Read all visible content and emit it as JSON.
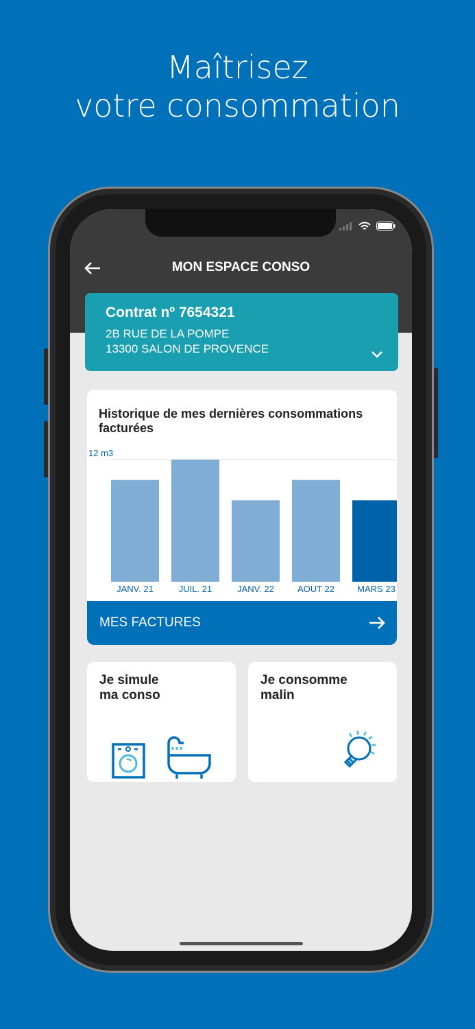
{
  "headline": {
    "line1": "Maîtrisez",
    "line2": "votre consommation"
  },
  "header": {
    "title": "MON ESPACE CONSO",
    "back_icon": "arrow-left-icon"
  },
  "contract": {
    "number": "Contrat nº 7654321",
    "address_line1": "2B RUE DE LA POMPE",
    "address_line2": "13300 SALON DE PROVENCE",
    "chevron": "chevron-down-icon"
  },
  "chart_card": {
    "title": "Historique de mes dernières consommations facturées"
  },
  "chart_data": {
    "type": "bar",
    "title": "Historique de mes dernières consommations facturées",
    "ylabel": "12 m3",
    "ylim": [
      0,
      12
    ],
    "categories": [
      "JANV. 21",
      "JUIL. 21",
      "JANV. 22",
      "AOUT 22",
      "MARS 23"
    ],
    "values": [
      10,
      12,
      8,
      10,
      8
    ],
    "colors": {
      "past": "#7fadd3",
      "current": "#0062a8"
    },
    "highlight": "MARS 23",
    "grid": "top line only"
  },
  "factures_button": {
    "label": "MES FACTURES",
    "icon": "arrow-right-icon"
  },
  "tiles": [
    {
      "line1": "Je simule",
      "line2": "ma conso",
      "icons": [
        "washing-machine-icon",
        "bathtub-icon"
      ]
    },
    {
      "line1": "Je consomme",
      "line2": "malin",
      "icons": [
        "lightbulb-icon"
      ]
    }
  ],
  "colors": {
    "background": "#0070b8",
    "contract": "#1a9fb0",
    "header": "#3b3b3b"
  }
}
